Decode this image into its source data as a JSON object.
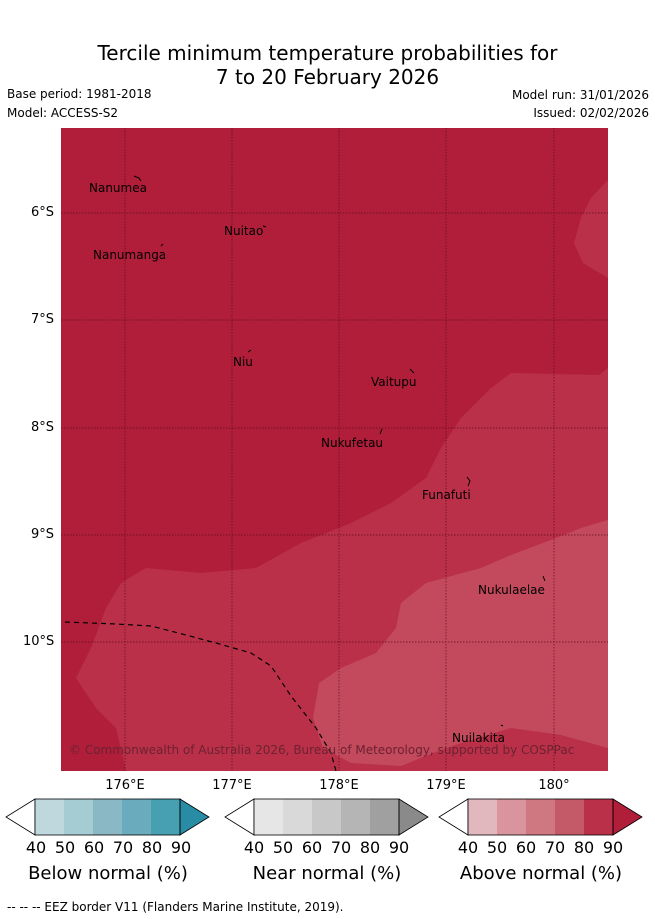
{
  "title": {
    "line1": "Tercile minimum temperature probabilities for",
    "line2": "7 to 20 February 2026"
  },
  "meta": {
    "base_period": "Base period: 1981-2018",
    "model": "Model: ACCESS-S2",
    "model_run": "Model run: 31/01/2026",
    "issued": "Issued: 02/02/2026"
  },
  "map": {
    "lat_labels": [
      "6°S",
      "7°S",
      "8°S",
      "9°S",
      "10°S"
    ],
    "lon_labels": [
      "176°E",
      "177°E",
      "178°E",
      "179°E",
      "180°"
    ],
    "places": [
      {
        "name": "Nanumea"
      },
      {
        "name": "Nuitao"
      },
      {
        "name": "Nanumanga"
      },
      {
        "name": "Niu"
      },
      {
        "name": "Vaitupu"
      },
      {
        "name": "Nukufetau"
      },
      {
        "name": "Funafuti"
      },
      {
        "name": "Nukulaelae"
      },
      {
        "name": "Nuilakita"
      }
    ],
    "copyright": "© Commonwealth of Australia 2026, Bureau of Meteorology, supported by COSPPac",
    "colors": {
      "above_90": "#b01e3a",
      "above_80": "#bb3049",
      "above_70": "#c24a5c"
    }
  },
  "colorbars": [
    {
      "label": "Below normal (%)",
      "ticks": [
        "40",
        "50",
        "60",
        "70",
        "80",
        "90"
      ],
      "colors": [
        "#ffffff",
        "#bfd8de",
        "#a6ccd3",
        "#8ab9c5",
        "#6aabbd",
        "#46a0b2",
        "#2a8ca4"
      ]
    },
    {
      "label": "Near normal (%)",
      "ticks": [
        "40",
        "50",
        "60",
        "70",
        "80",
        "90"
      ],
      "colors": [
        "#ffffff",
        "#e6e6e6",
        "#d9d9d9",
        "#c8c8c8",
        "#b5b5b5",
        "#a0a0a0",
        "#8a8a8a"
      ]
    },
    {
      "label": "Above normal (%)",
      "ticks": [
        "40",
        "50",
        "60",
        "70",
        "80",
        "90"
      ],
      "colors": [
        "#ffffff",
        "#e2b8bf",
        "#d9949d",
        "#d07882",
        "#c45a67",
        "#bb3049",
        "#b01e3a"
      ]
    }
  ],
  "footer": {
    "eez_note": "-- -- -- EEZ border V11 (Flanders Marine Institute, 2019)."
  }
}
